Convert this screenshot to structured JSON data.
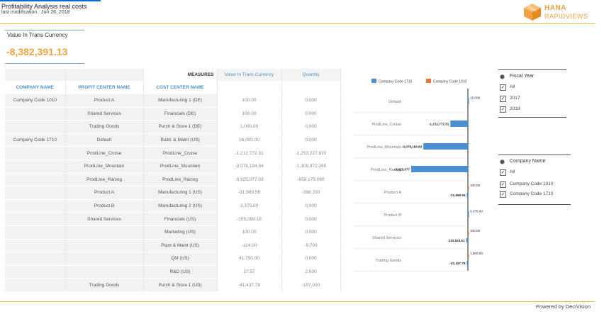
{
  "app": {
    "title": "Profitability Analysis real costs",
    "last_modification": "last modification : Jun 26, 2018",
    "logo_line1": "HANA",
    "logo_line2": "RAPIDVIEWS",
    "powered_by": "Powered by DeciVision"
  },
  "kpi": {
    "label": "Value In Trans Currency",
    "value": "-8,382,391.13",
    "color": "#f0a040"
  },
  "table": {
    "measures_label": "MEASURES",
    "headers": [
      "COMPANY NAME",
      "PROFIT CENTER NAME",
      "COST CENTER NAME"
    ],
    "measure_headers": [
      "Value In Trans Currency",
      "Quantity"
    ],
    "rows": [
      [
        "Company Code 1010",
        "Product A",
        "Manufacturing 1 (DE)",
        "100.00",
        "0.000"
      ],
      [
        "",
        "Shared Services",
        "Financials (DE)",
        "100.00",
        "0.000"
      ],
      [
        "",
        "Trading Goods",
        "Purch & Store 1 (DE)",
        "1,000.00",
        "0.000"
      ],
      [
        "Company Code 1710",
        "Default",
        "Build. & Maint (US)",
        "16,000.00",
        "0.000"
      ],
      [
        "",
        "ProdLine_Cruise",
        "ProdLine_Cruise",
        "-1,212,772.31",
        "-1,253,227.820"
      ],
      [
        "",
        "ProdLine_Mountain",
        "ProdLine_Mountain",
        "-3,078,184.84",
        "-1,309,972.260"
      ],
      [
        "",
        "ProdLine_Racing",
        "ProdLine_Racing",
        "-3,925,077.03",
        "-656,175.090"
      ],
      [
        "",
        "Product A",
        "Manufacturing 1 (US)",
        "-31,969.56",
        "-398.200"
      ],
      [
        "",
        "Product B",
        "Manufacturing 2 (US)",
        "3,375.00",
        "0.000"
      ],
      [
        "",
        "Shared Services",
        "Financials (US)",
        "-155,288.18",
        "0.000"
      ],
      [
        "",
        "",
        "Marketing (US)",
        "100.00",
        "0.000"
      ],
      [
        "",
        "",
        "Plant & Maint (US)",
        "-114.00",
        "-9.700"
      ],
      [
        "",
        "",
        "QM (US)",
        "41,750.00",
        "0.000"
      ],
      [
        "",
        "",
        "R&D (US)",
        "27.57",
        "2.000"
      ],
      [
        "",
        "Trading Goods",
        "Purch & Store 1 (US)",
        "-41,437.78",
        "-157.000"
      ]
    ]
  },
  "chart_data": {
    "type": "bar",
    "orientation": "horizontal",
    "legend_position": "top",
    "series": [
      {
        "name": "Company Code 1710",
        "color": "#4a8fd4"
      },
      {
        "name": "Company Code 1010",
        "color": "#e8773c"
      }
    ],
    "categories": [
      "Default",
      "ProdLine_Cruise",
      "ProdLine_Mountain",
      "ProdLine_Racing",
      "Product A",
      "Product B",
      "Shared Services",
      "Trading Goods"
    ],
    "bars": [
      {
        "category": "Default",
        "series": "Company Code 1710",
        "value": 16000,
        "label": "16,000"
      },
      {
        "category": "ProdLine_Cruise",
        "series": "Company Code 1710",
        "value": -1212772.31,
        "label": "-1,212,772.31"
      },
      {
        "category": "ProdLine_Mountain",
        "series": "Company Code 1710",
        "value": -3078184.84,
        "label": "-3,078,184.84"
      },
      {
        "category": "ProdLine_Racing",
        "series": "Company Code 1710",
        "value": -3925077,
        "label": "-3,925,077"
      },
      {
        "category": "Product A",
        "series": "Company Code 1010",
        "value": 100,
        "label": "100.00"
      },
      {
        "category": "Product A",
        "series": "Company Code 1710",
        "value": -31969.56,
        "label": "-31,969.56"
      },
      {
        "category": "Product B",
        "series": "Company Code 1710",
        "value": 3375,
        "label": "3,375.00"
      },
      {
        "category": "Shared Services",
        "series": "Company Code 1010",
        "value": 100,
        "label": "100.00"
      },
      {
        "category": "Shared Services",
        "series": "Company Code 1710",
        "value": -113524.61,
        "label": "-113,524.61"
      },
      {
        "category": "Trading Goods",
        "series": "Company Code 1010",
        "value": 1000,
        "label": "1,000.00"
      },
      {
        "category": "Trading Goods",
        "series": "Company Code 1710",
        "value": -41437.78,
        "label": "-41,437.78"
      }
    ],
    "xlim": [
      -3925077,
      16000
    ]
  },
  "filters": {
    "fiscal_year": {
      "title": "Fiscal Year",
      "icon": "cube-icon",
      "options": [
        {
          "label": "All",
          "checked": "✓"
        },
        {
          "label": "2017",
          "checked": "✓"
        },
        {
          "label": "2018",
          "checked": "✓"
        }
      ]
    },
    "company_name": {
      "title": "Company Name",
      "icon": "cube-icon",
      "options": [
        {
          "label": "All",
          "checked": "✓"
        },
        {
          "label": "Company Code 1010",
          "checked": "✓"
        },
        {
          "label": "Company Code 1710",
          "checked": "✓"
        }
      ]
    }
  }
}
